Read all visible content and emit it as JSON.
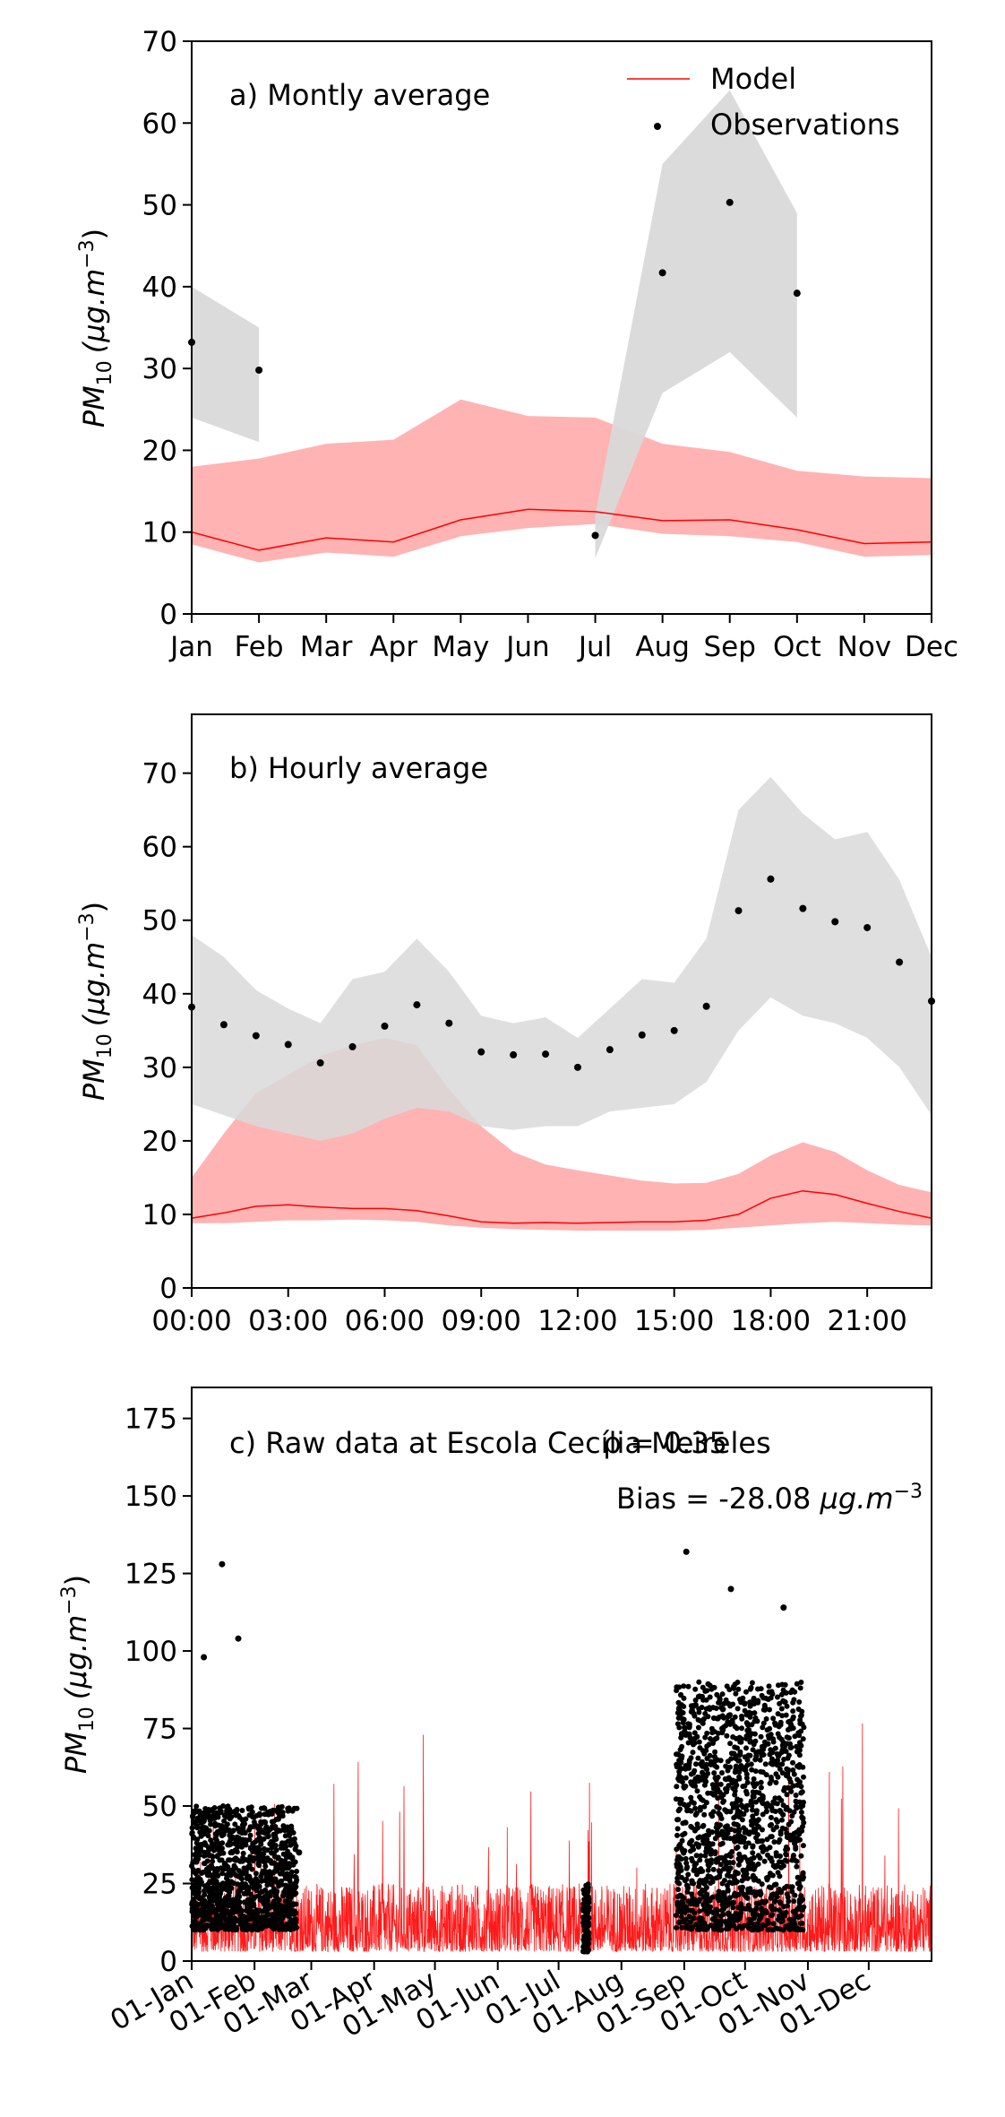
{
  "chart_data": [
    {
      "type": "line",
      "annotation": "a) Montly average",
      "ylabel_parts": {
        "base": "PM",
        "sub": "10",
        "unit": "(μg.m",
        "sup": "−3",
        "close": ")"
      },
      "legend": {
        "position": "top-right",
        "model_label": "Model",
        "obs_label": "Observations"
      },
      "ylim": [
        0,
        70
      ],
      "yticks": [
        0,
        10,
        20,
        30,
        40,
        50,
        60,
        70
      ],
      "categories": [
        "Jan",
        "Feb",
        "Mar",
        "Apr",
        "May",
        "Jun",
        "Jul",
        "Aug",
        "Sep",
        "Oct",
        "Nov",
        "Dec"
      ],
      "series": [
        {
          "name": "Model",
          "color": "#ff0000",
          "band_color": "#ffb3b3",
          "values": [
            10.0,
            7.8,
            9.3,
            8.8,
            11.5,
            12.8,
            12.5,
            11.4,
            11.5,
            10.3,
            8.6,
            8.8
          ],
          "lower": [
            8.5,
            6.3,
            7.5,
            7.0,
            9.5,
            10.5,
            11.0,
            9.8,
            9.5,
            8.8,
            7.0,
            7.2
          ],
          "upper": [
            18.0,
            19.0,
            20.8,
            21.3,
            26.2,
            24.2,
            24.0,
            20.8,
            19.8,
            17.5,
            16.8,
            16.6
          ]
        },
        {
          "name": "Observations",
          "color": "#000000",
          "band_color": "#d9d9d9",
          "values": [
            33.2,
            29.8,
            null,
            null,
            null,
            null,
            9.6,
            41.7,
            50.3,
            39.2,
            null,
            null
          ],
          "lower": [
            24.0,
            21.0,
            null,
            null,
            null,
            null,
            6.8,
            27.0,
            32.0,
            24.0,
            null,
            null
          ],
          "upper": [
            40.0,
            35.0,
            null,
            null,
            null,
            null,
            12.0,
            55.0,
            64.0,
            49.0,
            null,
            null
          ]
        }
      ]
    },
    {
      "type": "line",
      "annotation": "b) Hourly average",
      "ylabel_parts": {
        "base": "PM",
        "sub": "10",
        "unit": "(μg.m",
        "sup": "−3",
        "close": ")"
      },
      "ylim": [
        0,
        78
      ],
      "yticks": [
        0,
        10,
        20,
        30,
        40,
        50,
        60,
        70
      ],
      "x": [
        0,
        1,
        2,
        3,
        4,
        5,
        6,
        7,
        8,
        9,
        10,
        11,
        12,
        13,
        14,
        15,
        16,
        17,
        18,
        19,
        20,
        21,
        22,
        23
      ],
      "xticks": [
        0,
        3,
        6,
        9,
        12,
        15,
        18,
        21
      ],
      "xtick_labels": [
        "00:00",
        "03:00",
        "06:00",
        "09:00",
        "12:00",
        "15:00",
        "18:00",
        "21:00"
      ],
      "series": [
        {
          "name": "Model",
          "color": "#ff0000",
          "band_color": "#ffb3b3",
          "values": [
            9.5,
            10.2,
            11.1,
            11.3,
            11.0,
            10.8,
            10.8,
            10.5,
            9.8,
            9.0,
            8.8,
            8.9,
            8.8,
            8.9,
            9.0,
            9.0,
            9.2,
            10.0,
            12.2,
            13.2,
            12.7,
            11.5,
            10.4,
            9.5
          ],
          "lower": [
            8.8,
            8.8,
            9.0,
            9.2,
            9.2,
            9.3,
            9.2,
            9.0,
            8.5,
            8.2,
            8.0,
            7.9,
            7.8,
            7.8,
            7.8,
            7.8,
            7.9,
            8.2,
            8.5,
            8.8,
            9.0,
            8.8,
            8.6,
            8.5
          ],
          "upper": [
            15.0,
            21.0,
            26.5,
            29.0,
            31.5,
            33.0,
            34.0,
            33.0,
            27.0,
            22.0,
            18.5,
            16.8,
            16.0,
            15.3,
            14.6,
            14.2,
            14.3,
            15.5,
            18.0,
            19.8,
            18.5,
            16.0,
            14.0,
            13.0
          ]
        },
        {
          "name": "Observations",
          "color": "#000000",
          "band_color": "#d9d9d9",
          "values": [
            38.2,
            35.8,
            34.3,
            33.1,
            30.6,
            32.8,
            35.6,
            38.5,
            36.0,
            32.1,
            31.7,
            31.8,
            30.0,
            32.4,
            34.4,
            35.0,
            38.3,
            51.3,
            55.6,
            51.6,
            49.8,
            49.0,
            44.3,
            39.0
          ],
          "lower": [
            25.0,
            23.5,
            22.0,
            21.0,
            20.0,
            21.0,
            23.0,
            24.5,
            24.0,
            22.0,
            21.5,
            22.0,
            22.0,
            24.0,
            24.5,
            25.0,
            28.0,
            35.0,
            39.5,
            37.0,
            36.0,
            34.0,
            30.0,
            23.5
          ],
          "upper": [
            48.0,
            45.0,
            40.5,
            38.0,
            36.0,
            42.0,
            43.0,
            47.5,
            43.0,
            37.0,
            36.0,
            36.8,
            34.0,
            38.0,
            42.0,
            41.5,
            47.5,
            65.0,
            69.5,
            64.5,
            61.0,
            62.0,
            55.5,
            45.0
          ]
        }
      ]
    },
    {
      "type": "scatter",
      "annotation": "c) Raw data at Escola Cecília Meireles",
      "rho_text": "ρ = 0.35",
      "bias_parts": {
        "text": "Bias = -28.08 ",
        "unit": "μg.m",
        "sup": "−3"
      },
      "ylabel_parts": {
        "base": "PM",
        "sub": "10",
        "unit": "(μg.m",
        "sup": "−3",
        "close": ")"
      },
      "ylim": [
        0,
        185
      ],
      "yticks": [
        0,
        25,
        50,
        75,
        100,
        125,
        150,
        175
      ],
      "x_range_days": [
        0,
        365
      ],
      "xticks_day": [
        0,
        31,
        59,
        90,
        120,
        151,
        181,
        212,
        243,
        273,
        304,
        334
      ],
      "xtick_labels": [
        "01-Jan",
        "01-Feb",
        "01-Mar",
        "01-Apr",
        "01-May",
        "01-Jun",
        "01-Jul",
        "01-Aug",
        "01-Sep",
        "01-Oct",
        "01-Nov",
        "01-Dec"
      ],
      "model": {
        "name": "Model",
        "color": "#ff0000",
        "typical_range": [
          3,
          25
        ],
        "peaks": [
          30,
          45,
          55,
          65,
          78
        ]
      },
      "observations": {
        "name": "Observations",
        "color": "#000000",
        "periods": [
          {
            "start_day": 0,
            "end_day": 52,
            "typical_range": [
              10,
              50
            ]
          },
          {
            "start_day": 193,
            "end_day": 196,
            "typical_range": [
              3,
              25
            ]
          },
          {
            "start_day": 239,
            "end_day": 302,
            "typical_range": [
              10,
              90
            ]
          }
        ],
        "notable_values": [
          {
            "day": 15,
            "value": 128
          },
          {
            "day": 23,
            "value": 104
          },
          {
            "day": 6,
            "value": 98
          },
          {
            "day": 244,
            "value": 132
          },
          {
            "day": 266,
            "value": 120
          },
          {
            "day": 292,
            "value": 114
          },
          {
            "day": 53,
            "value": 35
          }
        ]
      }
    }
  ]
}
